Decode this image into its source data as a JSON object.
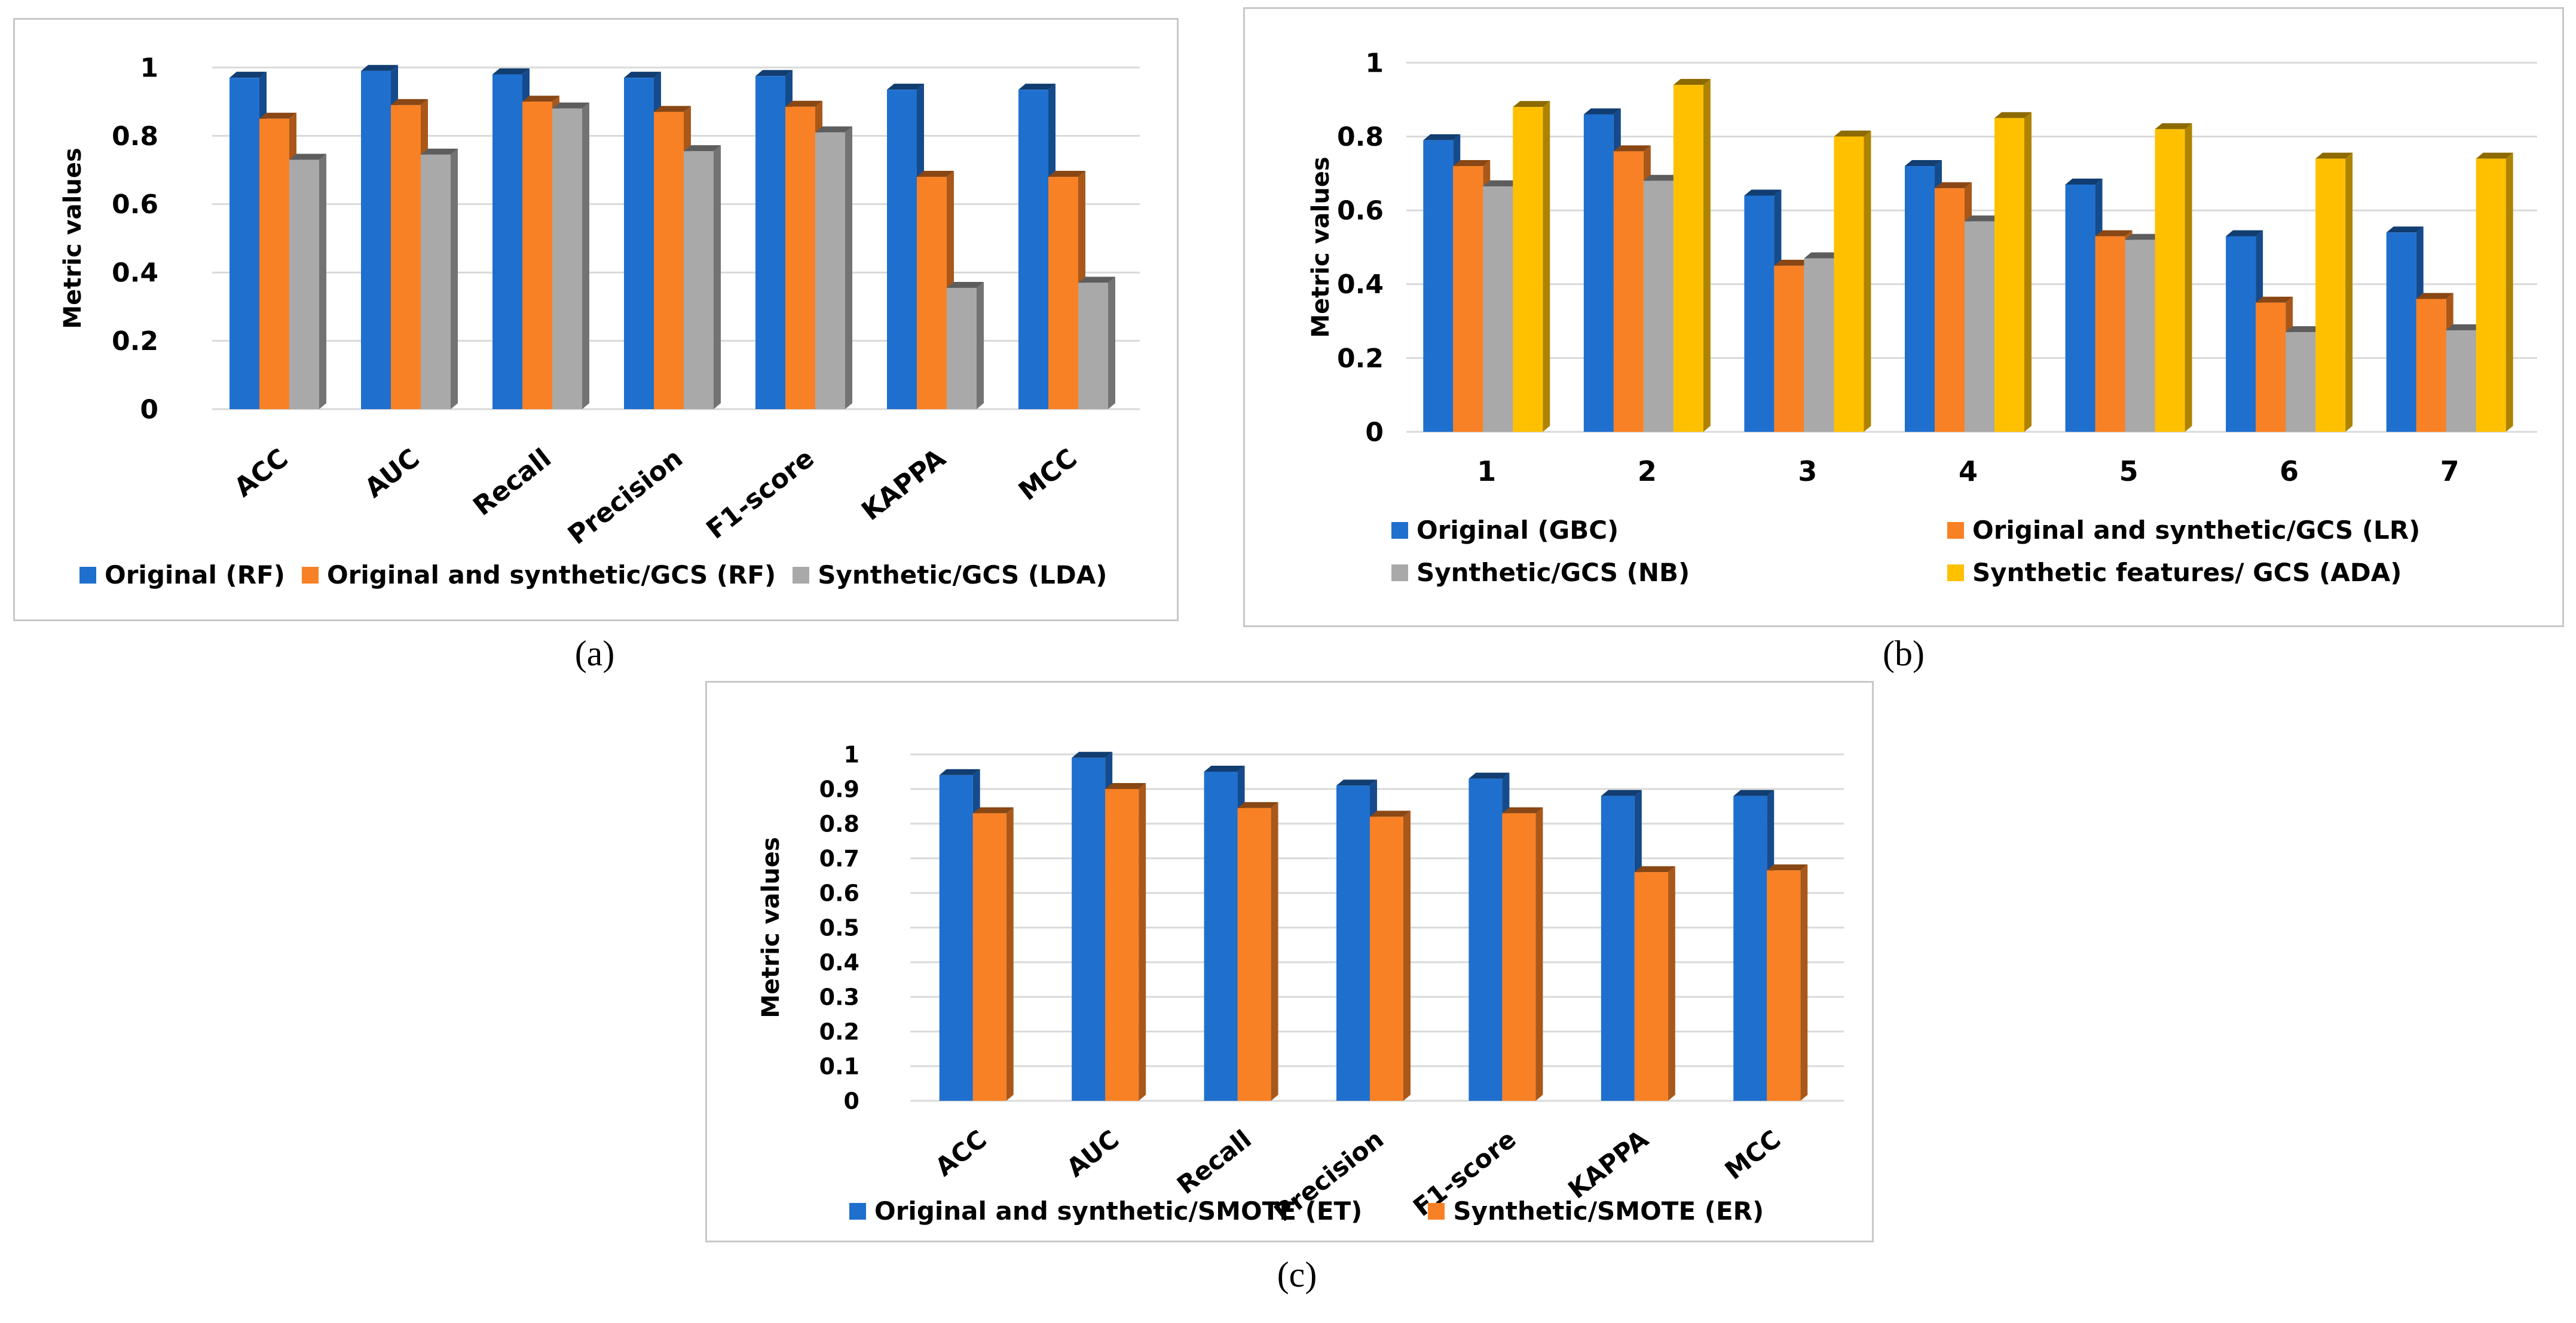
{
  "chart_data": [
    {
      "type": "bar",
      "panel_label": "(a)",
      "title": "",
      "xlabel": "",
      "ylabel": "Metric values",
      "ylim": [
        0,
        1
      ],
      "yticks": [
        "0",
        "0.2",
        "0.4",
        "0.6",
        "0.8",
        "1"
      ],
      "grid": true,
      "legend_position": "bottom",
      "categories": [
        "ACC",
        "AUC",
        "Recall",
        "Precision",
        "F1-score",
        "KAPPA",
        "MCC"
      ],
      "series": [
        {
          "name": "Original (RF)",
          "color": "#1f6fce",
          "values": [
            0.97,
            0.99,
            0.98,
            0.97,
            0.975,
            0.935,
            0.935
          ]
        },
        {
          "name": "Original and synthetic/GCS (RF)",
          "color": "#f88125",
          "values": [
            0.85,
            0.89,
            0.9,
            0.87,
            0.885,
            0.68,
            0.68
          ]
        },
        {
          "name": "Synthetic/GCS (LDA)",
          "color": "#a9a9a9",
          "values": [
            0.73,
            0.745,
            0.88,
            0.755,
            0.81,
            0.355,
            0.37
          ]
        }
      ]
    },
    {
      "type": "bar",
      "panel_label": "(b)",
      "title": "",
      "xlabel": "",
      "ylabel": "Metric values",
      "ylim": [
        0,
        1
      ],
      "yticks": [
        "0",
        "0.2",
        "0.4",
        "0.6",
        "0.8",
        "1"
      ],
      "grid": true,
      "legend_position": "bottom",
      "categories": [
        "1",
        "2",
        "3",
        "4",
        "5",
        "6",
        "7"
      ],
      "series": [
        {
          "name": "Original (GBC)",
          "color": "#1f6fce",
          "values": [
            0.79,
            0.86,
            0.64,
            0.72,
            0.67,
            0.53,
            0.54
          ]
        },
        {
          "name": "Original and  synthetic/GCS (LR)",
          "color": "#f88125",
          "values": [
            0.72,
            0.76,
            0.45,
            0.66,
            0.53,
            0.35,
            0.36
          ]
        },
        {
          "name": "Synthetic/GCS (NB)",
          "color": "#a9a9a9",
          "values": [
            0.665,
            0.68,
            0.47,
            0.57,
            0.52,
            0.27,
            0.275
          ]
        },
        {
          "name": "Synthetic features/ GCS (ADA)",
          "color": "#ffc000",
          "values": [
            0.88,
            0.94,
            0.8,
            0.85,
            0.82,
            0.74,
            0.74
          ]
        }
      ]
    },
    {
      "type": "bar",
      "panel_label": "(c)",
      "title": "",
      "xlabel": "",
      "ylabel": "Metric values",
      "ylim": [
        0,
        1
      ],
      "yticks": [
        "0",
        "0.1",
        "0.2",
        "0.3",
        "0.4",
        "0.5",
        "0.6",
        "0.7",
        "0.8",
        "0.9",
        "1"
      ],
      "grid": true,
      "legend_position": "bottom",
      "categories": [
        "ACC",
        "AUC",
        "Recall",
        "Precision",
        "F1-score",
        "KAPPA",
        "MCC"
      ],
      "series": [
        {
          "name": "Original and synthetic/SMOTE (ET)",
          "color": "#1f6fce",
          "values": [
            0.94,
            0.99,
            0.95,
            0.91,
            0.93,
            0.88,
            0.88
          ]
        },
        {
          "name": "Synthetic/SMOTE (ER)",
          "color": "#f88125",
          "values": [
            0.83,
            0.9,
            0.845,
            0.82,
            0.83,
            0.66,
            0.665
          ]
        }
      ]
    }
  ]
}
